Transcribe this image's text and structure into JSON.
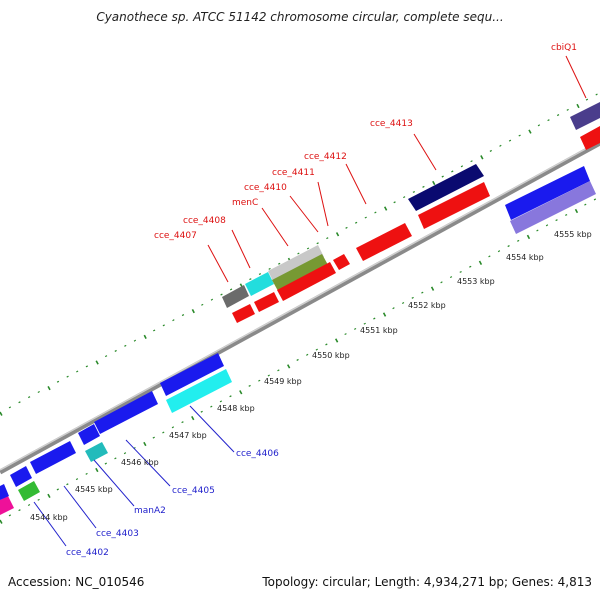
{
  "title": "Cyanothece sp. ATCC 51142 chromosome circular, complete sequ...",
  "footer": {
    "accession": "Accession: NC_010546",
    "summary": "Topology: circular; Length: 4,934,271 bp; Genes: 4,813"
  },
  "ticks": [
    "4544 kbp",
    "4545 kbp",
    "4546 kbp",
    "4547 kbp",
    "4548 kbp",
    "4549 kbp",
    "4550 kbp",
    "4551 kbp",
    "4552 kbp",
    "4553 kbp",
    "4554 kbp",
    "4555 kbp"
  ],
  "genes_forward": [
    "cce_4407",
    "cce_4408",
    "menC",
    "cce_4410",
    "cce_4411",
    "cce_4412",
    "cce_4413",
    "cbiQ1"
  ],
  "genes_reverse": [
    "cce_4402",
    "cce_4403",
    "manA2",
    "cce_4405",
    "cce_4406"
  ],
  "colors": {
    "forward_label": "#dd1111",
    "reverse_label": "#2222cc",
    "backbone": "#888888",
    "tick": "#2a8a2a"
  }
}
